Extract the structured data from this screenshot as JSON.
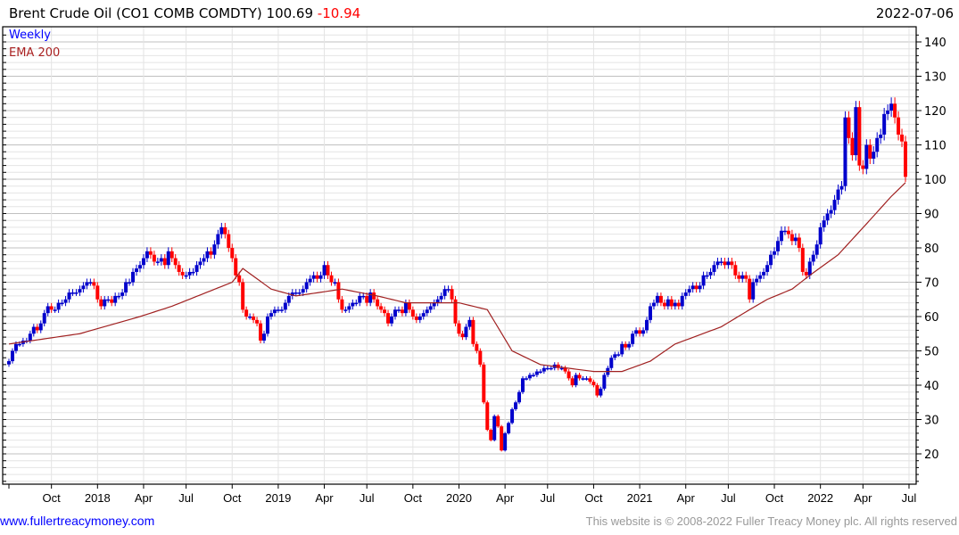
{
  "header": {
    "title": "Brent Crude Oil  (CO1 COMB COMDTY) 100.69",
    "change": "-10.94",
    "date": "2022-07-06"
  },
  "footer": {
    "link": "www.fullertreacymoney.com",
    "copyright": "This website is © 2008-2022 Fuller Treacy Money plc. All rights reserved"
  },
  "colors": {
    "up": "#0000cc",
    "down": "#ff0000",
    "ema": "#a02020",
    "grid_major": "#c0c0c0",
    "grid_minor": "#e4e4e4"
  },
  "chart_data": {
    "type": "candlestick",
    "title": "Brent Crude Oil  (CO1 COMB COMDTY)",
    "legend": [
      "Weekly",
      "EMA 200"
    ],
    "legend_position": "top-left",
    "ylim": [
      11,
      144
    ],
    "yticks": [
      20,
      30,
      40,
      50,
      60,
      70,
      80,
      90,
      100,
      110,
      120,
      130,
      140
    ],
    "xticks": [
      {
        "label": "Oct",
        "i": 12
      },
      {
        "label": "2018",
        "i": 25
      },
      {
        "label": "Apr",
        "i": 38
      },
      {
        "label": "Jul",
        "i": 50
      },
      {
        "label": "Oct",
        "i": 63
      },
      {
        "label": "2019",
        "i": 76
      },
      {
        "label": "Apr",
        "i": 89
      },
      {
        "label": "Jul",
        "i": 101
      },
      {
        "label": "Oct",
        "i": 114
      },
      {
        "label": "2020",
        "i": 127
      },
      {
        "label": "Apr",
        "i": 140
      },
      {
        "label": "Jul",
        "i": 152
      },
      {
        "label": "Oct",
        "i": 165
      },
      {
        "label": "2021",
        "i": 178
      },
      {
        "label": "Apr",
        "i": 191
      },
      {
        "label": "Jul",
        "i": 203
      },
      {
        "label": "Oct",
        "i": 216
      },
      {
        "label": "2022",
        "i": 229
      },
      {
        "label": "Apr",
        "i": 241
      },
      {
        "label": "Jul",
        "i": 254
      }
    ],
    "weekly_close": [
      47,
      50,
      52,
      52,
      53,
      53,
      55,
      57,
      56,
      58,
      61,
      63,
      62,
      62,
      64,
      64,
      65,
      67,
      67,
      67,
      68,
      69,
      70,
      70,
      69,
      65,
      63,
      65,
      65,
      64,
      66,
      66,
      67,
      70,
      70,
      73,
      74,
      75,
      77,
      79,
      78,
      76,
      76,
      77,
      75,
      79,
      77,
      75,
      73,
      72,
      72,
      73,
      73,
      75,
      76,
      77,
      79,
      78,
      81,
      84,
      86,
      84,
      80,
      77,
      72,
      70,
      62,
      60,
      60,
      59,
      58,
      53,
      55,
      60,
      61,
      62,
      62,
      62,
      64,
      66,
      67,
      67,
      67,
      68,
      70,
      71,
      72,
      71,
      72,
      75,
      72,
      70,
      70,
      65,
      62,
      62,
      63,
      64,
      64,
      66,
      66,
      64,
      67,
      65,
      63,
      62,
      61,
      58,
      60,
      62,
      62,
      61,
      64,
      62,
      60,
      59,
      60,
      61,
      62,
      63,
      64,
      65,
      66,
      68,
      68,
      65,
      58,
      55,
      54,
      57,
      59,
      52,
      50,
      46,
      35,
      27,
      24,
      31,
      28,
      21,
      26,
      29,
      33,
      35,
      38,
      42,
      42,
      43,
      43,
      44,
      44,
      45,
      45,
      45,
      46,
      45,
      45,
      44,
      42,
      40,
      43,
      42,
      42,
      42,
      41,
      40,
      37,
      39,
      43,
      45,
      48,
      49,
      49,
      52,
      51,
      52,
      55,
      56,
      55,
      56,
      59,
      63,
      64,
      66,
      64,
      63,
      65,
      63,
      64,
      63,
      66,
      67,
      68,
      69,
      68,
      69,
      72,
      72,
      73,
      75,
      76,
      76,
      75,
      76,
      75,
      72,
      71,
      72,
      71,
      65,
      70,
      71,
      72,
      73,
      75,
      78,
      79,
      82,
      85,
      85,
      84,
      82,
      83,
      80,
      73,
      72,
      76,
      78,
      81,
      86,
      88,
      90,
      91,
      94,
      97,
      98,
      118,
      112,
      107,
      121,
      104,
      103,
      110,
      106,
      108,
      112,
      113,
      119,
      120,
      122,
      118,
      113,
      111,
      100.69
    ],
    "ema200": [
      [
        0,
        52
      ],
      [
        20,
        55
      ],
      [
        37,
        60
      ],
      [
        46,
        63
      ],
      [
        63,
        70
      ],
      [
        66,
        74
      ],
      [
        74,
        68
      ],
      [
        81,
        66
      ],
      [
        94,
        68
      ],
      [
        104,
        66
      ],
      [
        112,
        64
      ],
      [
        127,
        64
      ],
      [
        135,
        62
      ],
      [
        142,
        50
      ],
      [
        150,
        46
      ],
      [
        165,
        44
      ],
      [
        173,
        44
      ],
      [
        181,
        47
      ],
      [
        188,
        52
      ],
      [
        201,
        57
      ],
      [
        209,
        62
      ],
      [
        214,
        65
      ],
      [
        221,
        68
      ],
      [
        226,
        72
      ],
      [
        234,
        78
      ],
      [
        242,
        87
      ],
      [
        249,
        95
      ],
      [
        253,
        99
      ]
    ]
  }
}
